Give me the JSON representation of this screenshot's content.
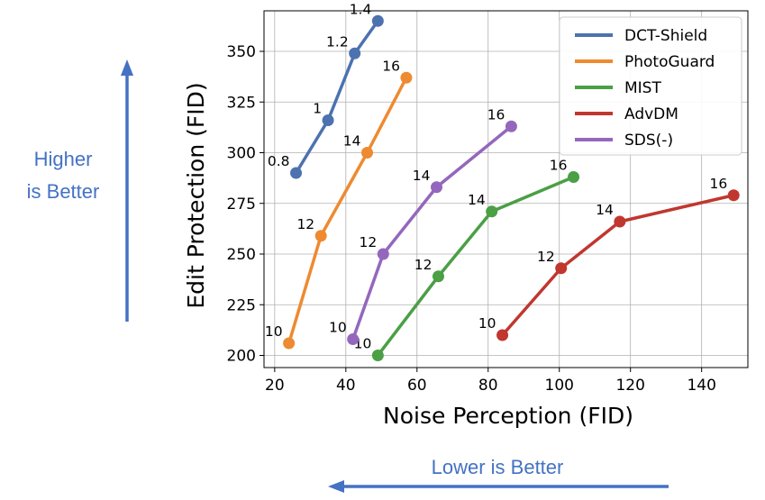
{
  "chart_data": {
    "type": "line",
    "xlabel": "Noise Perception (FID)",
    "ylabel": "Edit Protection (FID)",
    "xlim": [
      17,
      153
    ],
    "ylim": [
      194,
      370
    ],
    "xticks": [
      20,
      40,
      60,
      80,
      100,
      120,
      140
    ],
    "yticks": [
      200,
      225,
      250,
      275,
      300,
      325,
      350
    ],
    "grid": true,
    "legend_position": "top-right",
    "series": [
      {
        "name": "DCT-Shield",
        "color": "#4c72b0",
        "x": [
          26,
          35,
          42.5,
          49
        ],
        "y": [
          290,
          316,
          349,
          365
        ],
        "labels": [
          "0.8",
          "1",
          "1.2",
          "1.4"
        ]
      },
      {
        "name": "PhotoGuard",
        "color": "#ee8a31",
        "x": [
          24,
          33,
          46,
          57
        ],
        "y": [
          206,
          259,
          300,
          337
        ],
        "labels": [
          "10",
          "12",
          "14",
          "16"
        ]
      },
      {
        "name": "MIST",
        "color": "#4b9f45",
        "x": [
          49,
          66,
          81,
          104
        ],
        "y": [
          200,
          239,
          271,
          288
        ],
        "labels": [
          "10",
          "12",
          "14",
          "16"
        ]
      },
      {
        "name": "AdvDM",
        "color": "#c0372f",
        "x": [
          84,
          100.5,
          117,
          149
        ],
        "y": [
          210,
          243,
          266,
          279
        ],
        "labels": [
          "10",
          "12",
          "14",
          "16"
        ]
      },
      {
        "name": "SDS(-)",
        "color": "#9467bd",
        "x": [
          42,
          50.5,
          65.5,
          86.5
        ],
        "y": [
          208,
          250,
          283,
          313
        ],
        "labels": [
          "10",
          "12",
          "14",
          "16"
        ]
      }
    ]
  },
  "annotations": {
    "higher_line1": "Higher",
    "higher_line2": "is Better",
    "lower": "Lower is Better",
    "arrow_color": "#4472c4"
  }
}
